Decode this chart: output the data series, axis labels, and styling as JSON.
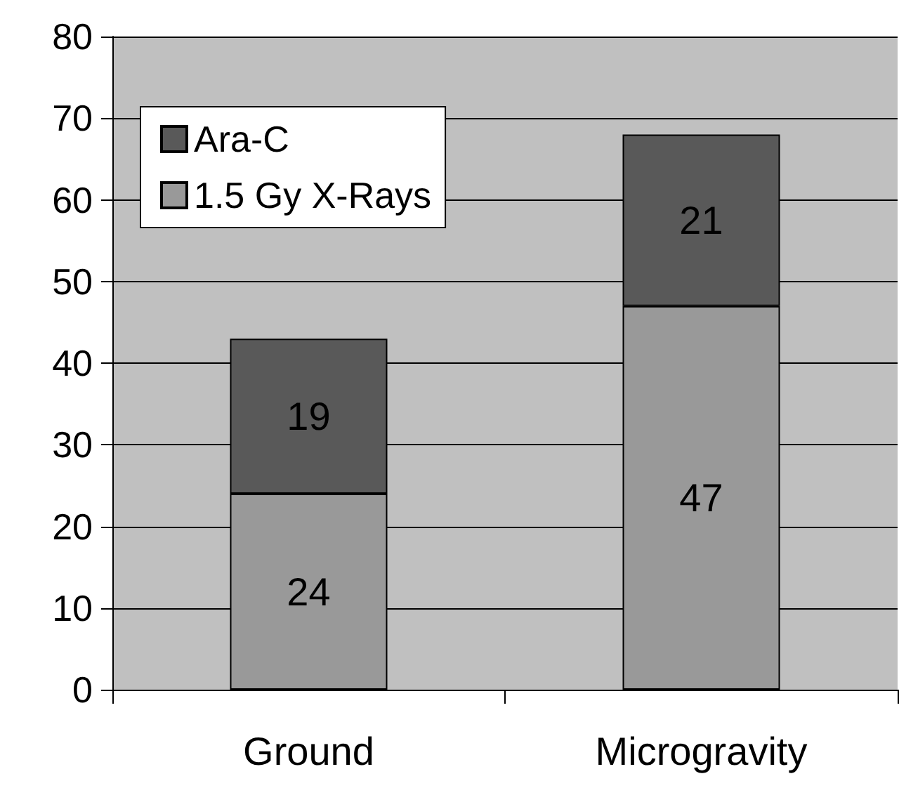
{
  "chart_data": {
    "type": "bar",
    "categories": [
      "Ground",
      "Microgravity"
    ],
    "stacked": true,
    "data_labels": true,
    "series": [
      {
        "name": "1.5 Gy X-Rays",
        "color": "#999999",
        "values": [
          24,
          47
        ]
      },
      {
        "name": "Ara-C",
        "color": "#595959",
        "values": [
          19,
          21
        ]
      }
    ],
    "ylim": [
      0,
      80
    ],
    "yticks": [
      0,
      10,
      20,
      30,
      40,
      50,
      60,
      70,
      80
    ],
    "grid": "y",
    "legend": "top left"
  }
}
